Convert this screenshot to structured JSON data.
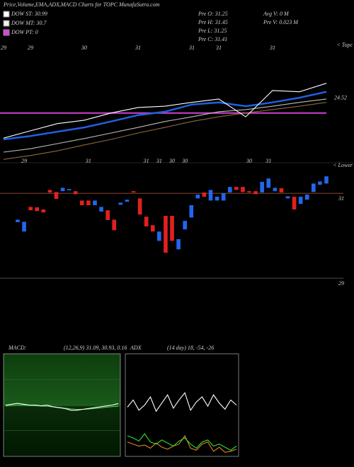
{
  "header": {
    "title": "Price,Volume,EMA,ADX,MACD Charts for TOPC MunafaSutra.com",
    "legend": [
      {
        "name": "DOW ST: 30.99",
        "color": "#ffffff"
      },
      {
        "name": "DOW MT: 30.7",
        "color": "#f0f0f0"
      },
      {
        "name": "DOW PT: 0",
        "color": "#e040e0"
      }
    ],
    "info": [
      "Pre O: 31.25",
      "Pre H: 31.45",
      "Pre L: 31.25",
      "Pre C: 31.41",
      "Avg V: 0 M",
      "Pre V: 0.023 M"
    ]
  },
  "chart_data": [
    {
      "type": "line",
      "annotation": "< Topc",
      "categories": [
        "29",
        "29",
        null,
        "30",
        null,
        "31",
        null,
        "31",
        "31",
        null,
        "31",
        null,
        null
      ],
      "ylim": [
        22.87,
        25.7
      ],
      "yticks": [
        24.52
      ],
      "reference_line": {
        "value": 24.04,
        "color": "#d040d0"
      },
      "series": [
        {
          "color": "#8a6a3a",
          "values": [
            22.95,
            23.04,
            23.15,
            23.29,
            23.42,
            23.57,
            23.7,
            23.84,
            23.95,
            24.04,
            24.12,
            24.2,
            24.29
          ]
        },
        {
          "color": "#bbbbbb",
          "values": [
            23.12,
            23.2,
            23.32,
            23.44,
            23.57,
            23.7,
            23.84,
            23.95,
            24.07,
            24.12,
            24.2,
            24.29,
            24.37
          ]
        },
        {
          "color": "#2060e0",
          "values": [
            23.42,
            23.5,
            23.6,
            23.7,
            23.84,
            23.99,
            24.07,
            24.24,
            24.29,
            24.2,
            24.29,
            24.4,
            24.54
          ]
        },
        {
          "color": "#ffffff",
          "values": [
            23.45,
            23.62,
            23.79,
            23.87,
            24.04,
            24.17,
            24.2,
            24.29,
            24.37,
            23.95,
            24.57,
            24.54,
            24.74
          ]
        }
      ]
    },
    {
      "type": "candlestick",
      "annotation": "< Lower",
      "categories": [
        null,
        "29",
        null,
        null,
        null,
        null,
        null,
        null,
        null,
        null,
        null,
        "31",
        null,
        null,
        null,
        null,
        null,
        null,
        null,
        null,
        "31",
        null,
        "31",
        null,
        "30",
        null,
        "30",
        null,
        null,
        null,
        null,
        null,
        null,
        null,
        null,
        null,
        "30",
        null,
        null,
        "31",
        null,
        null,
        null,
        null,
        null,
        null,
        null,
        null,
        null
      ],
      "ylim": [
        28.72,
        31.72
      ],
      "yticks": [
        31,
        29
      ],
      "up_color": "#2266ee",
      "down_color": "#e02020",
      "open": [
        30.32,
        30.1,
        30.68,
        30.67,
        30.62,
        31.08,
        31.03,
        31.05,
        31.07,
        31.05,
        30.83,
        30.83,
        30.72,
        30.57,
        30.6,
        30.38,
        30.73,
        30.8,
        31.05,
        30.88,
        30.45,
        30.25,
        29.88,
        30.47,
        30.47,
        29.68,
        30.15,
        30.43,
        30.88,
        31.02,
        30.83,
        30.83,
        30.83,
        31.02,
        31.15,
        31.15,
        31.05,
        31.05,
        31.02,
        31.13,
        31.05,
        31.12,
        30.88,
        30.92,
        30.75,
        30.85,
        31.03,
        31.2,
        31.23
      ],
      "close": [
        30.38,
        30.33,
        30.6,
        30.58,
        30.55,
        31.02,
        30.87,
        31.13,
        31.1,
        30.98,
        30.72,
        30.72,
        30.83,
        30.68,
        30.37,
        30.13,
        30.78,
        30.85,
        31.02,
        30.5,
        30.22,
        30.1,
        30.1,
        29.6,
        29.88,
        29.92,
        30.35,
        30.72,
        30.97,
        30.92,
        31.08,
        30.92,
        31.0,
        31.15,
        31.08,
        31.03,
        31.02,
        30.98,
        31.27,
        31.35,
        31.13,
        31.02,
        30.93,
        30.62,
        30.92,
        30.97,
        31.23,
        31.28,
        31.4
      ]
    },
    {
      "type": "line",
      "title": "MACD:",
      "subtitle": "(12,26,9) 31.09, 30.93, 0.16",
      "ylim": [
        28,
        34
      ],
      "series": [
        {
          "color": "#40d040",
          "values": [
            30.95,
            30.98,
            31.0,
            31.0,
            30.98,
            30.97,
            30.95,
            30.93,
            30.9,
            30.86,
            30.82,
            30.78,
            30.75,
            30.75,
            30.77,
            30.8,
            30.84,
            30.88,
            30.91,
            30.93
          ]
        },
        {
          "color": "#ffffff",
          "values": [
            31.0,
            31.05,
            31.1,
            31.05,
            31.0,
            31.0,
            30.95,
            31.0,
            30.9,
            30.85,
            30.8,
            30.7,
            30.7,
            30.75,
            30.8,
            30.85,
            30.9,
            30.95,
            31.0,
            31.09
          ]
        }
      ]
    },
    {
      "type": "line",
      "title": "ADX",
      "subtitle": "(14 day) 18, -54, -26",
      "ylim": [
        0,
        100
      ],
      "series": [
        {
          "color": "#ffffff",
          "values": [
            48,
            55,
            45,
            50,
            58,
            44,
            52,
            60,
            47,
            55,
            62,
            45,
            53,
            58,
            49,
            60,
            52,
            46,
            55,
            50
          ]
        },
        {
          "color": "#e08020",
          "values": [
            14,
            12,
            10,
            11,
            8,
            13,
            9,
            7,
            10,
            12,
            20,
            8,
            6,
            12,
            14,
            5,
            9,
            4,
            5,
            7
          ]
        },
        {
          "color": "#30e030",
          "values": [
            20,
            18,
            15,
            22,
            14,
            12,
            16,
            13,
            10,
            15,
            18,
            12,
            8,
            14,
            16,
            10,
            12,
            9,
            6,
            10
          ]
        }
      ]
    }
  ]
}
